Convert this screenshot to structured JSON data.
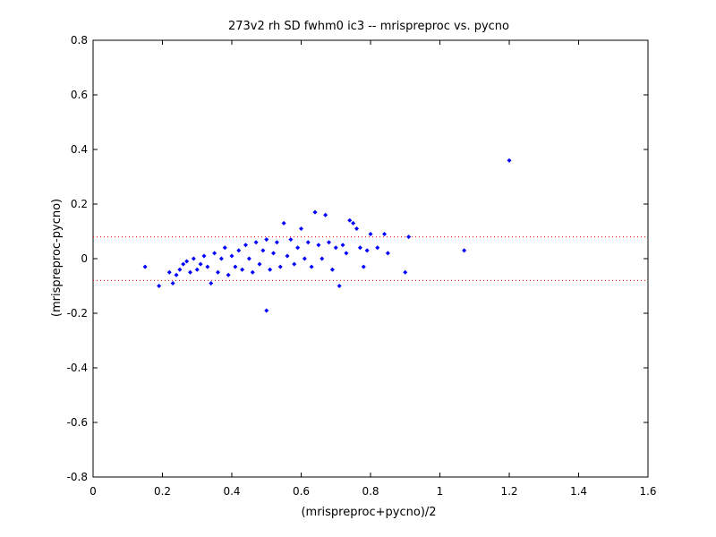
{
  "chart_data": {
    "type": "scatter",
    "title": "273v2 rh SD fwhm0 ic3 -- mrispreproc vs. pycno",
    "xlabel": "(mrispreproc+pycno)/2",
    "ylabel": "(mrispreproc-pycno)",
    "xlim": [
      0,
      1.6
    ],
    "ylim": [
      -0.8,
      0.8
    ],
    "x_ticks": [
      0,
      0.2,
      0.4,
      0.6,
      0.8,
      1,
      1.2,
      1.4,
      1.6
    ],
    "y_ticks": [
      -0.8,
      -0.6,
      -0.4,
      -0.2,
      0,
      0.2,
      0.4,
      0.6,
      0.8
    ],
    "x_tick_labels": [
      "0",
      "0.2",
      "0.4",
      "0.6",
      "0.8",
      "1",
      "1.2",
      "1.4",
      "1.6"
    ],
    "y_tick_labels": [
      "-0.8",
      "-0.6",
      "-0.4",
      "-0.2",
      "0",
      "0.2",
      "0.4",
      "0.6",
      "0.8"
    ],
    "grid": false,
    "marker_color": "#0000ff",
    "reference_line_color": "#ff0000",
    "reference_lines_y": [
      0.08,
      -0.08
    ],
    "points": [
      [
        0.15,
        -0.03
      ],
      [
        0.19,
        -0.1
      ],
      [
        0.22,
        -0.05
      ],
      [
        0.23,
        -0.09
      ],
      [
        0.24,
        -0.06
      ],
      [
        0.25,
        -0.04
      ],
      [
        0.26,
        -0.02
      ],
      [
        0.27,
        -0.01
      ],
      [
        0.28,
        -0.05
      ],
      [
        0.29,
        0.0
      ],
      [
        0.3,
        -0.04
      ],
      [
        0.31,
        -0.02
      ],
      [
        0.32,
        0.01
      ],
      [
        0.33,
        -0.03
      ],
      [
        0.34,
        -0.09
      ],
      [
        0.35,
        0.02
      ],
      [
        0.36,
        -0.05
      ],
      [
        0.37,
        0.0
      ],
      [
        0.38,
        0.04
      ],
      [
        0.39,
        -0.06
      ],
      [
        0.4,
        0.01
      ],
      [
        0.41,
        -0.03
      ],
      [
        0.42,
        0.03
      ],
      [
        0.43,
        -0.04
      ],
      [
        0.44,
        0.05
      ],
      [
        0.45,
        0.0
      ],
      [
        0.46,
        -0.05
      ],
      [
        0.47,
        0.06
      ],
      [
        0.48,
        -0.02
      ],
      [
        0.49,
        0.03
      ],
      [
        0.5,
        -0.19
      ],
      [
        0.5,
        0.07
      ],
      [
        0.51,
        -0.04
      ],
      [
        0.52,
        0.02
      ],
      [
        0.53,
        0.06
      ],
      [
        0.54,
        -0.03
      ],
      [
        0.55,
        0.13
      ],
      [
        0.56,
        0.01
      ],
      [
        0.57,
        0.07
      ],
      [
        0.58,
        -0.02
      ],
      [
        0.59,
        0.04
      ],
      [
        0.6,
        0.11
      ],
      [
        0.61,
        0.0
      ],
      [
        0.62,
        0.06
      ],
      [
        0.63,
        -0.03
      ],
      [
        0.64,
        0.17
      ],
      [
        0.65,
        0.05
      ],
      [
        0.66,
        0.0
      ],
      [
        0.67,
        0.16
      ],
      [
        0.68,
        0.06
      ],
      [
        0.69,
        -0.04
      ],
      [
        0.7,
        0.04
      ],
      [
        0.71,
        -0.1
      ],
      [
        0.72,
        0.05
      ],
      [
        0.73,
        0.02
      ],
      [
        0.74,
        0.14
      ],
      [
        0.75,
        0.13
      ],
      [
        0.76,
        0.11
      ],
      [
        0.77,
        0.04
      ],
      [
        0.78,
        -0.03
      ],
      [
        0.79,
        0.03
      ],
      [
        0.8,
        0.09
      ],
      [
        0.82,
        0.04
      ],
      [
        0.84,
        0.09
      ],
      [
        0.85,
        0.02
      ],
      [
        0.9,
        -0.05
      ],
      [
        0.91,
        0.08
      ],
      [
        1.07,
        0.03
      ],
      [
        1.2,
        0.36
      ]
    ]
  }
}
